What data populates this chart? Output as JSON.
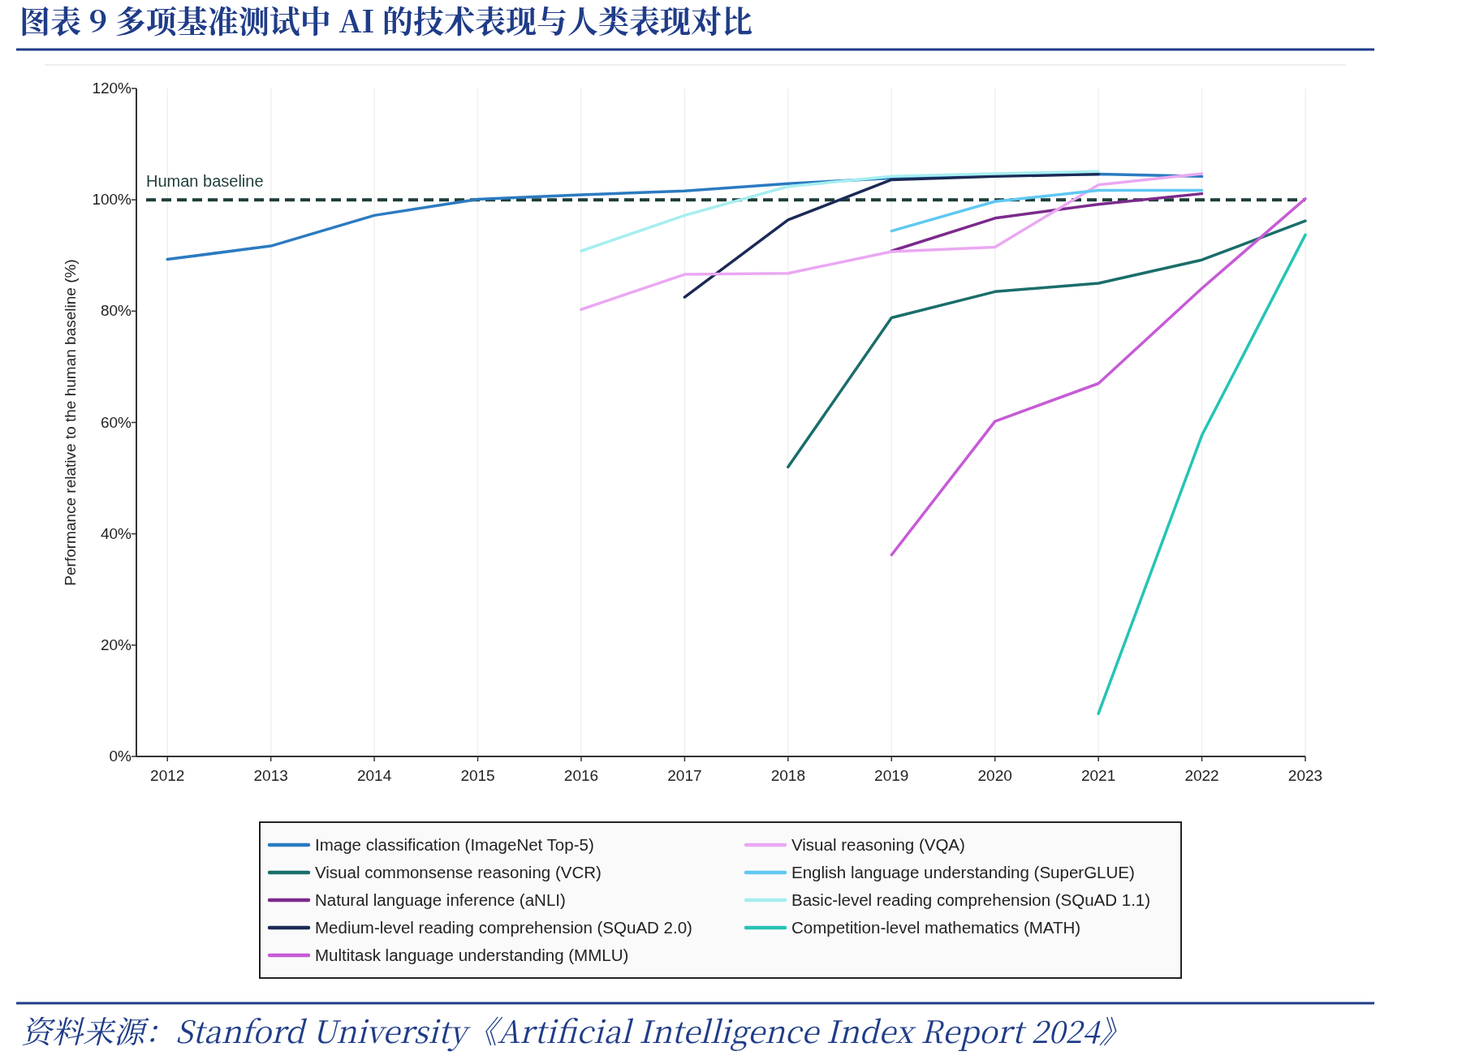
{
  "chart_data": {
    "type": "line",
    "title": "图表 9   多项基准测试中 AI 的技术表现与人类表现对比",
    "ylabel": "Performance relative to the human baseline (%)",
    "annotations": [
      "资料来源：Stanford University《Artificial Intelligence Index Report 2024》"
    ],
    "xlim": [
      2011.7,
      2023
    ],
    "xticks": [
      2012,
      2013,
      2014,
      2015,
      2016,
      2017,
      2018,
      2019,
      2020,
      2021,
      2022,
      2023
    ],
    "ylim": [
      0,
      120
    ],
    "yticks": [
      {
        "value": 0,
        "label": "0%"
      },
      {
        "value": 20,
        "label": "20%"
      },
      {
        "value": 40,
        "label": "40%"
      },
      {
        "value": 60,
        "label": "60%"
      },
      {
        "value": 80,
        "label": "80%"
      },
      {
        "value": 100,
        "label": "100%"
      },
      {
        "value": 120,
        "label": "120%"
      }
    ],
    "grid": "x",
    "legend": "bottom",
    "line_style": "solid",
    "ref_lines": [
      {
        "axis": "y",
        "value": 100,
        "label": "Human baseline",
        "color": "#1e3d3a",
        "line_style": "dashed"
      }
    ],
    "series": [
      {
        "name": "Image classification (ImageNet Top-5)",
        "color": "#2b7bc0",
        "x": [
          2012,
          2013,
          2014,
          2015,
          2016,
          2017,
          2018,
          2019,
          2020,
          2021,
          2022
        ],
        "values": [
          89.3,
          91.7,
          97.2,
          100.1,
          100.9,
          101.6,
          102.9,
          103.9,
          104.4,
          104.6,
          104.2
        ]
      },
      {
        "name": "Visual commonsense reasoning (VCR)",
        "color": "#1a6e6a",
        "x": [
          2018,
          2019,
          2020,
          2021,
          2022,
          2023
        ],
        "values": [
          52.0,
          78.8,
          83.5,
          85.0,
          89.2,
          96.2
        ]
      },
      {
        "name": "Natural language inference (aNLI)",
        "color": "#7b2a8c",
        "x": [
          2019,
          2020,
          2021,
          2022
        ],
        "values": [
          90.8,
          96.7,
          99.2,
          101.1
        ]
      },
      {
        "name": "Medium-level reading comprehension (SQuAD 2.0)",
        "color": "#1b2a55",
        "x": [
          2017,
          2018,
          2019,
          2020,
          2021
        ],
        "values": [
          82.5,
          96.4,
          103.6,
          104.2,
          104.6
        ]
      },
      {
        "name": "Multitask language understanding (MMLU)",
        "color": "#c65bd6",
        "x": [
          2019,
          2020,
          2021,
          2022,
          2023
        ],
        "values": [
          36.2,
          60.2,
          67.0,
          84.1,
          100.2
        ]
      },
      {
        "name": "Visual reasoning (VQA)",
        "color": "#eaa8f2",
        "x": [
          2016,
          2017,
          2018,
          2019,
          2020,
          2021,
          2022
        ],
        "values": [
          80.3,
          86.6,
          86.8,
          90.7,
          91.5,
          102.7,
          104.7
        ]
      },
      {
        "name": "English language understanding (SuperGLUE)",
        "color": "#5fc8f2",
        "x": [
          2019,
          2020,
          2021,
          2022
        ],
        "values": [
          94.4,
          99.7,
          101.7,
          101.7
        ]
      },
      {
        "name": "Basic-level reading comprehension (SQuAD 1.1)",
        "color": "#a6eef0",
        "x": [
          2016,
          2017,
          2018,
          2019,
          2020,
          2021
        ],
        "values": [
          90.8,
          97.2,
          102.4,
          104.2,
          104.7,
          105.1
        ]
      },
      {
        "name": "Competition-level mathematics (MATH)",
        "color": "#26c4b5",
        "x": [
          2021,
          2022,
          2023
        ],
        "values": [
          7.7,
          57.7,
          93.7
        ]
      }
    ]
  }
}
